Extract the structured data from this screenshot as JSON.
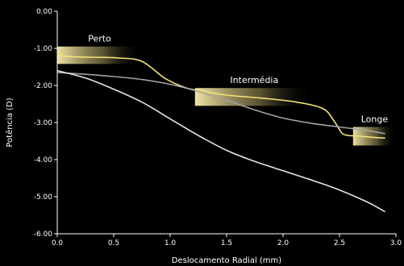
{
  "chart_data": {
    "type": "line",
    "title": "",
    "xlabel": "Deslocamento Radial (mm)",
    "ylabel": "Potência (D)",
    "xlim": [
      0,
      3
    ],
    "ylim": [
      -6,
      0
    ],
    "x_ticks": [
      "0.0",
      "0.5",
      "1.0",
      "1.5",
      "2.0",
      "2.5",
      "3.0"
    ],
    "y_ticks": [
      "0.00",
      "-1.00",
      "-2.00",
      "-3.00",
      "-4.00",
      "-5.00",
      "-6.00"
    ],
    "grid": false,
    "zones": [
      {
        "label": "Perto",
        "x_range": [
          0.0,
          0.75
        ],
        "y_range": [
          -0.95,
          -1.42
        ]
      },
      {
        "label": "Intermédia",
        "x_range": [
          1.22,
          2.27
        ],
        "y_range": [
          -2.07,
          -2.55
        ]
      },
      {
        "label": "Longe",
        "x_range": [
          2.62,
          3.0
        ],
        "y_range": [
          -3.12,
          -3.62
        ]
      }
    ],
    "series": [
      {
        "color": "#f2e27a",
        "x": [
          0.0,
          0.1,
          0.3,
          0.55,
          0.75,
          0.95,
          1.1,
          1.22,
          1.5,
          1.8,
          2.1,
          2.35,
          2.45,
          2.52,
          2.58,
          2.65,
          2.8,
          2.9
        ],
        "y": [
          -1.18,
          -1.22,
          -1.24,
          -1.26,
          -1.35,
          -1.8,
          -2.02,
          -2.12,
          -2.26,
          -2.34,
          -2.44,
          -2.62,
          -2.95,
          -3.28,
          -3.35,
          -3.36,
          -3.4,
          -3.42
        ]
      },
      {
        "color": "#a3a3a3",
        "x": [
          0.0,
          0.25,
          0.5,
          0.75,
          1.0,
          1.25,
          1.5,
          1.75,
          2.0,
          2.25,
          2.5,
          2.75,
          2.9
        ],
        "y": [
          -1.65,
          -1.7,
          -1.76,
          -1.84,
          -1.97,
          -2.16,
          -2.4,
          -2.66,
          -2.88,
          -3.02,
          -3.12,
          -3.22,
          -3.3
        ]
      },
      {
        "color": "#e5e5e5",
        "x": [
          0.0,
          0.25,
          0.5,
          0.75,
          1.0,
          1.25,
          1.5,
          1.75,
          2.0,
          2.25,
          2.5,
          2.75,
          2.9
        ],
        "y": [
          -1.6,
          -1.8,
          -2.1,
          -2.45,
          -2.9,
          -3.35,
          -3.75,
          -4.05,
          -4.3,
          -4.55,
          -4.82,
          -5.15,
          -5.4
        ]
      }
    ]
  }
}
